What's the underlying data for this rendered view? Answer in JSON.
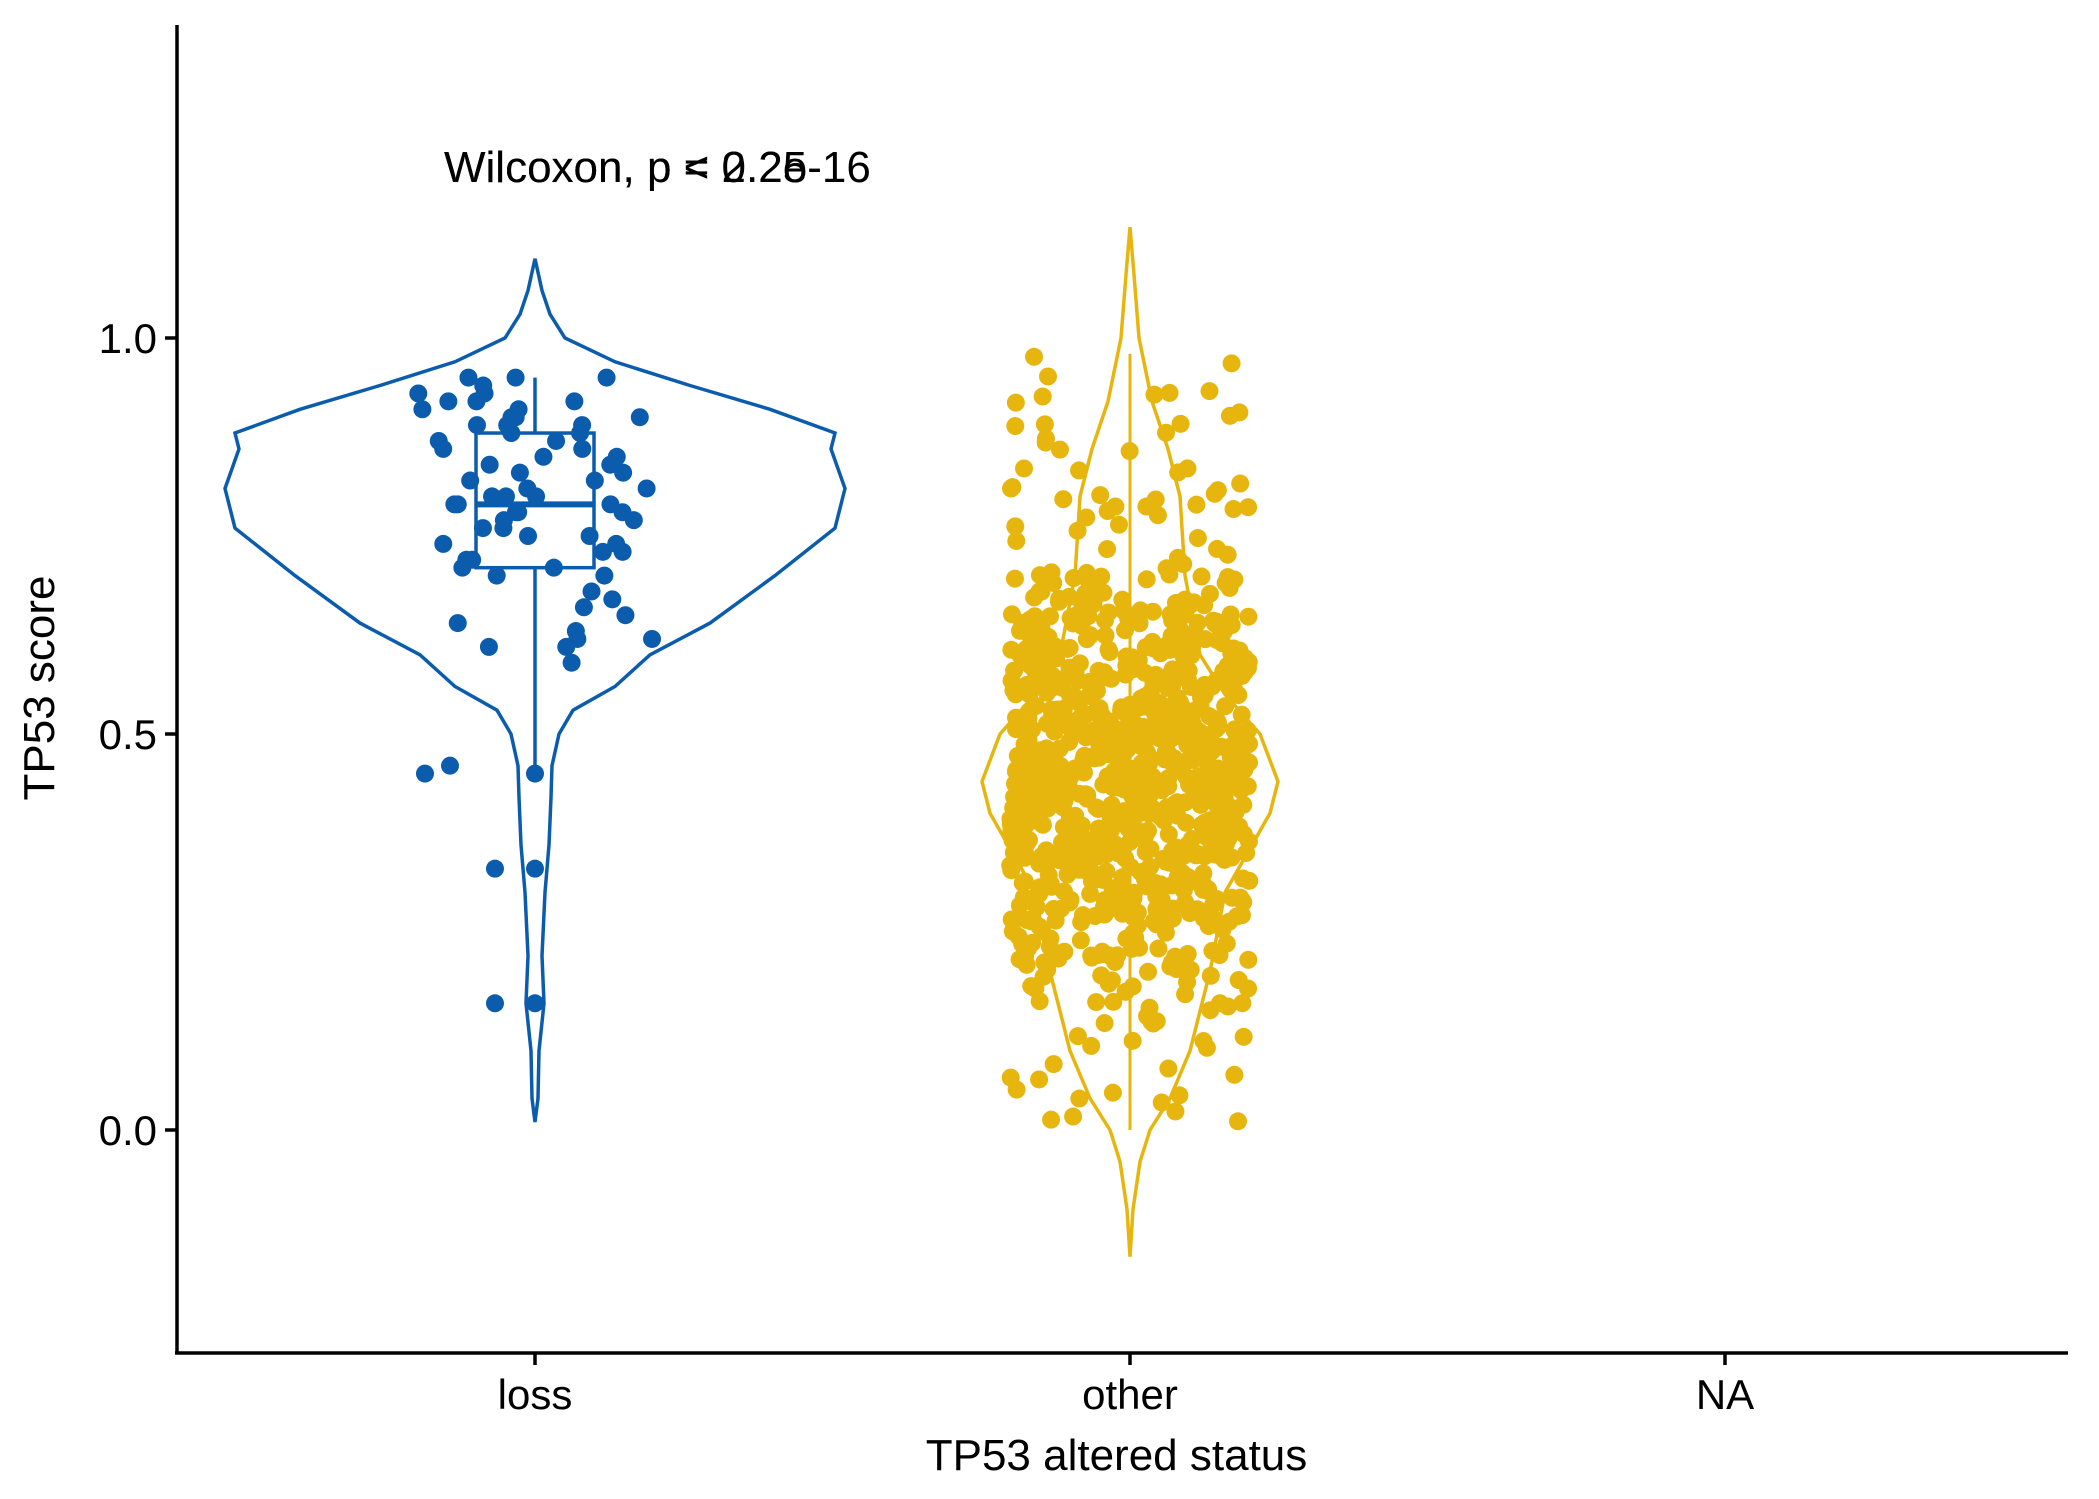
{
  "chart_data": {
    "type": "violin",
    "xlabel": "TP53 altered status",
    "ylabel": "TP53 score",
    "categories": [
      "loss",
      "other",
      "NA"
    ],
    "y_ticks": [
      "0.0",
      "0.5",
      "1.0"
    ],
    "ylim": [
      -0.28,
      1.4
    ],
    "grid": false,
    "legend": "none",
    "annotations": [
      "Wilcoxon, p < 2.2e-16",
      "Wilcoxon, p = 0.25"
    ],
    "colors": {
      "loss": "#0b5cad",
      "other": "#e7b60e"
    },
    "series": [
      {
        "category": "loss",
        "box": {
          "q1": 0.71,
          "median": 0.79,
          "q3": 0.88,
          "whisker_low": 0.46,
          "whisker_high": 0.95
        },
        "violin_range": [
          0.01,
          1.1
        ],
        "points": [
          0.45,
          0.46,
          0.45,
          0.33,
          0.33,
          0.16,
          0.16,
          0.59,
          0.61,
          0.61,
          0.62,
          0.62,
          0.63,
          0.64,
          0.65,
          0.66,
          0.67,
          0.68,
          0.7,
          0.7,
          0.71,
          0.71,
          0.72,
          0.72,
          0.73,
          0.73,
          0.74,
          0.74,
          0.75,
          0.75,
          0.76,
          0.76,
          0.77,
          0.77,
          0.78,
          0.78,
          0.78,
          0.79,
          0.79,
          0.79,
          0.8,
          0.8,
          0.8,
          0.81,
          0.81,
          0.82,
          0.82,
          0.83,
          0.83,
          0.84,
          0.84,
          0.85,
          0.85,
          0.86,
          0.86,
          0.87,
          0.87,
          0.88,
          0.88,
          0.89,
          0.89,
          0.89,
          0.9,
          0.9,
          0.9,
          0.91,
          0.91,
          0.92,
          0.92,
          0.92,
          0.93,
          0.93,
          0.94,
          0.95,
          0.95,
          0.95
        ]
      },
      {
        "category": "other",
        "median": 0.44,
        "violin_range": [
          -0.16,
          1.14
        ],
        "n_points": 900,
        "point_range": [
          0.01,
          0.98
        ]
      }
    ]
  }
}
